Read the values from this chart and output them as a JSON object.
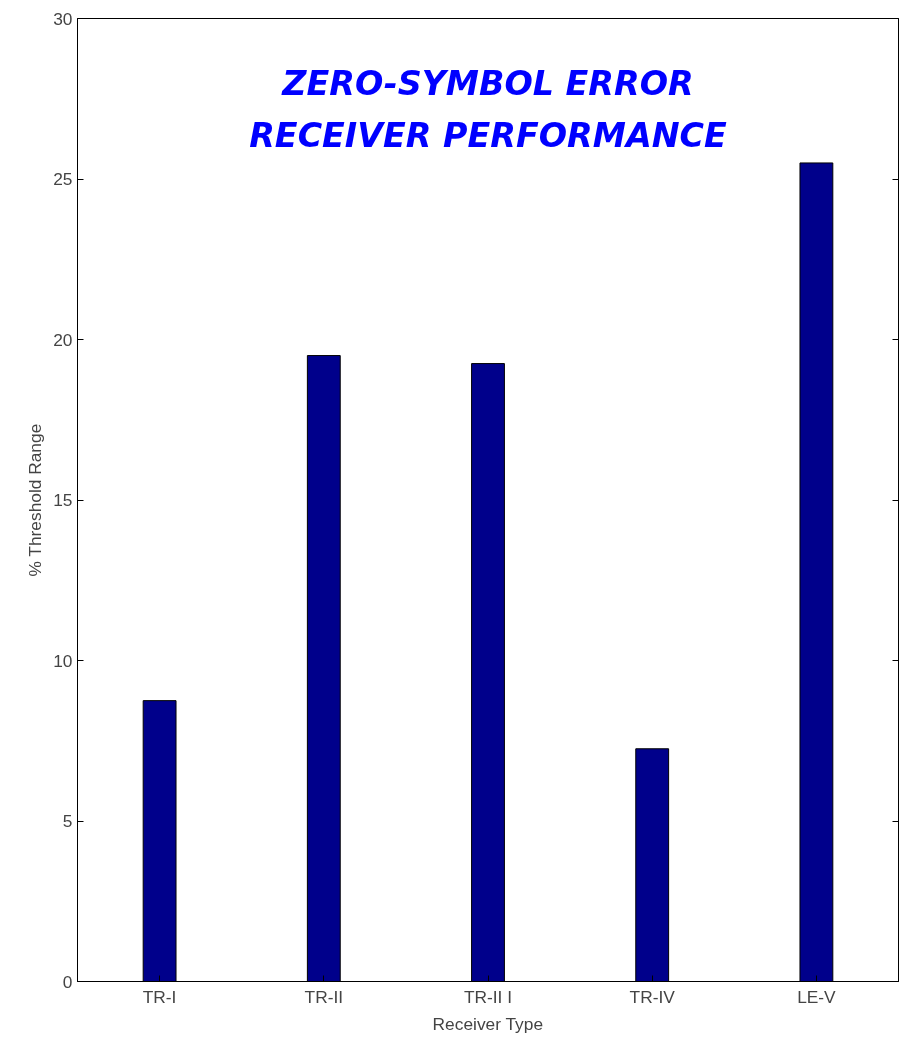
{
  "chart_data": {
    "type": "bar",
    "title": "ZERO-SYMBOL ERROR\nRECEIVER PERFORMANCE",
    "xlabel": "Receiver Type",
    "ylabel": "% Threshold Range",
    "categories": [
      "TR-I",
      "TR-II",
      "TR-II I",
      "TR-IV",
      "LE-V"
    ],
    "values": [
      8.75,
      19.5,
      19.25,
      7.25,
      25.5
    ],
    "color": "#00008b",
    "ylim": [
      0,
      30
    ],
    "yticks": [
      0,
      5,
      10,
      15,
      20,
      25,
      30
    ],
    "grid": false
  }
}
